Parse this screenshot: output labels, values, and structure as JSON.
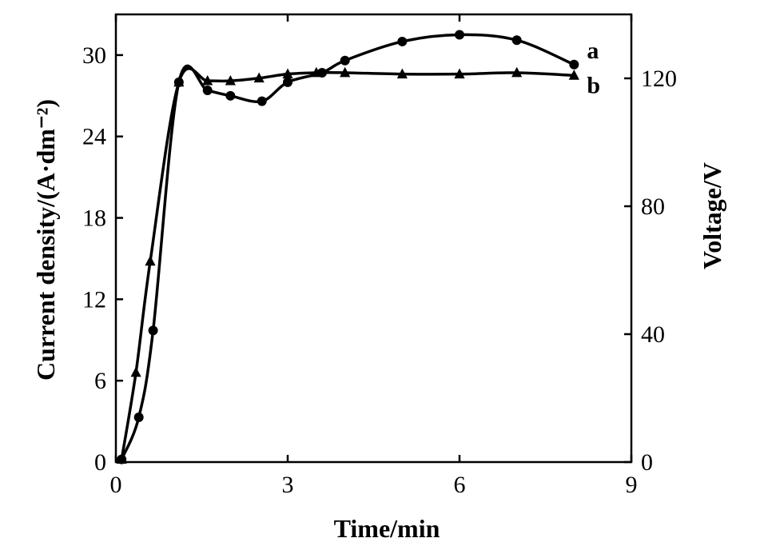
{
  "chart_data": {
    "type": "line",
    "title": "",
    "xlabel": "Time/min",
    "ylabel": "Current density/(A·dm⁻²)",
    "y2label": "Voltage/V",
    "xlim": [
      0,
      9
    ],
    "ylim": [
      0,
      33
    ],
    "y2lim": [
      0,
      140
    ],
    "xticks": [
      "0",
      "3",
      "6",
      "9"
    ],
    "yticks": [
      "0",
      "6",
      "12",
      "18",
      "24",
      "30"
    ],
    "y2ticks": [
      "0",
      "40",
      "80",
      "120"
    ],
    "grid": false,
    "series": [
      {
        "name": "a",
        "axis": "left",
        "marker": "circle",
        "x": [
          0.1,
          0.4,
          0.65,
          1.1,
          1.6,
          2.0,
          2.55,
          3.0,
          3.6,
          4.0,
          5.0,
          6.0,
          7.0,
          8.0
        ],
        "y": [
          0.2,
          3.3,
          9.7,
          28.0,
          27.4,
          27.0,
          26.6,
          28.0,
          28.7,
          29.6,
          31.0,
          31.5,
          31.1,
          29.3
        ]
      },
      {
        "name": "b",
        "axis": "left",
        "marker": "triangle",
        "x": [
          0.1,
          0.35,
          0.6,
          1.1,
          1.6,
          2.0,
          2.5,
          3.0,
          3.5,
          4.0,
          5.0,
          6.0,
          7.0,
          8.0
        ],
        "y": [
          0.2,
          6.6,
          14.8,
          28.0,
          28.1,
          28.1,
          28.3,
          28.6,
          28.7,
          28.7,
          28.6,
          28.6,
          28.7,
          28.5
        ]
      }
    ]
  }
}
